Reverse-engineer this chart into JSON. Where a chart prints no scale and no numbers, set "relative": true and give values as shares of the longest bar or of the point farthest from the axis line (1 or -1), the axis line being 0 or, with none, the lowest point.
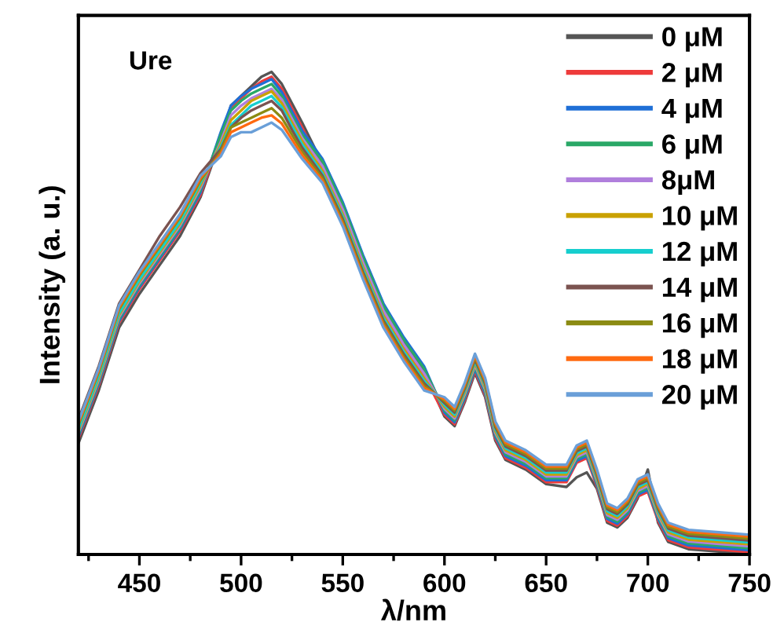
{
  "chart_data": {
    "type": "line",
    "relative": true,
    "xlabel": "λ/nm",
    "ylabel": "Intensity (a. u.)",
    "annotations": [
      "Ure"
    ],
    "x": [
      420,
      430,
      440,
      450,
      460,
      470,
      480,
      490,
      495,
      500,
      505,
      510,
      515,
      520,
      525,
      530,
      540,
      550,
      560,
      570,
      580,
      590,
      600,
      605,
      610,
      615,
      620,
      625,
      630,
      640,
      650,
      660,
      665,
      670,
      675,
      680,
      685,
      690,
      695,
      700,
      705,
      710,
      720,
      735,
      750
    ],
    "xlim": [
      420,
      750
    ],
    "xticks": [
      450,
      500,
      550,
      600,
      650,
      700,
      750
    ],
    "legend": "top right",
    "grid": false,
    "line_style": "solid",
    "series": [
      {
        "name": "0 μM",
        "color": "#555555",
        "values": [
          0.23,
          0.34,
          0.47,
          0.54,
          0.6,
          0.66,
          0.74,
          0.86,
          0.93,
          0.95,
          0.97,
          0.99,
          1.0,
          0.975,
          0.935,
          0.895,
          0.81,
          0.72,
          0.61,
          0.51,
          0.44,
          0.38,
          0.286,
          0.266,
          0.316,
          0.376,
          0.326,
          0.236,
          0.196,
          0.176,
          0.146,
          0.14,
          0.16,
          0.17,
          0.136,
          0.066,
          0.056,
          0.076,
          0.116,
          0.176,
          0.066,
          0.026,
          0.011,
          0.006,
          0.001
        ]
      },
      {
        "name": "2 μM",
        "color": "#ee3b3b",
        "values": [
          0.24,
          0.35,
          0.48,
          0.55,
          0.61,
          0.67,
          0.745,
          0.865,
          0.925,
          0.945,
          0.965,
          0.98,
          0.99,
          0.965,
          0.925,
          0.885,
          0.8,
          0.71,
          0.6,
          0.5,
          0.43,
          0.37,
          0.29,
          0.27,
          0.32,
          0.38,
          0.33,
          0.24,
          0.2,
          0.18,
          0.15,
          0.15,
          0.19,
          0.2,
          0.14,
          0.07,
          0.06,
          0.08,
          0.12,
          0.13,
          0.07,
          0.03,
          0.015,
          0.01,
          0.005
        ]
      },
      {
        "name": "4 μM",
        "color": "#1f6fd6",
        "values": [
          0.244,
          0.354,
          0.484,
          0.554,
          0.614,
          0.674,
          0.75,
          0.875,
          0.93,
          0.95,
          0.965,
          0.975,
          0.985,
          0.958,
          0.918,
          0.878,
          0.82,
          0.73,
          0.62,
          0.52,
          0.45,
          0.39,
          0.294,
          0.274,
          0.324,
          0.384,
          0.334,
          0.244,
          0.204,
          0.184,
          0.154,
          0.154,
          0.194,
          0.204,
          0.144,
          0.074,
          0.064,
          0.084,
          0.124,
          0.134,
          0.074,
          0.034,
          0.019,
          0.014,
          0.009
        ]
      },
      {
        "name": "6 μM",
        "color": "#2aa867",
        "values": [
          0.248,
          0.358,
          0.488,
          0.558,
          0.618,
          0.678,
          0.755,
          0.87,
          0.92,
          0.94,
          0.955,
          0.965,
          0.975,
          0.95,
          0.91,
          0.87,
          0.815,
          0.725,
          0.615,
          0.515,
          0.445,
          0.385,
          0.298,
          0.278,
          0.328,
          0.388,
          0.338,
          0.248,
          0.208,
          0.188,
          0.158,
          0.158,
          0.198,
          0.208,
          0.148,
          0.078,
          0.068,
          0.088,
          0.128,
          0.138,
          0.078,
          0.038,
          0.023,
          0.018,
          0.013
        ]
      },
      {
        "name": "8μM",
        "color": "#b07fdc",
        "values": [
          0.252,
          0.362,
          0.492,
          0.562,
          0.622,
          0.682,
          0.76,
          0.855,
          0.91,
          0.93,
          0.945,
          0.955,
          0.965,
          0.943,
          0.903,
          0.863,
          0.805,
          0.715,
          0.605,
          0.505,
          0.435,
          0.375,
          0.302,
          0.282,
          0.332,
          0.392,
          0.342,
          0.252,
          0.212,
          0.192,
          0.162,
          0.162,
          0.202,
          0.212,
          0.152,
          0.082,
          0.072,
          0.092,
          0.132,
          0.142,
          0.082,
          0.042,
          0.027,
          0.022,
          0.017
        ]
      },
      {
        "name": "10 μM",
        "color": "#c9a100",
        "values": [
          0.256,
          0.366,
          0.496,
          0.566,
          0.626,
          0.686,
          0.765,
          0.85,
          0.9,
          0.92,
          0.94,
          0.95,
          0.96,
          0.935,
          0.895,
          0.857,
          0.795,
          0.705,
          0.595,
          0.495,
          0.425,
          0.365,
          0.306,
          0.286,
          0.336,
          0.396,
          0.346,
          0.256,
          0.216,
          0.196,
          0.166,
          0.166,
          0.206,
          0.216,
          0.156,
          0.086,
          0.076,
          0.096,
          0.136,
          0.146,
          0.086,
          0.046,
          0.031,
          0.026,
          0.021
        ]
      },
      {
        "name": "12 μM",
        "color": "#16cece",
        "values": [
          0.26,
          0.37,
          0.5,
          0.57,
          0.63,
          0.69,
          0.77,
          0.845,
          0.89,
          0.91,
          0.93,
          0.94,
          0.95,
          0.927,
          0.888,
          0.85,
          0.79,
          0.7,
          0.59,
          0.49,
          0.42,
          0.36,
          0.31,
          0.29,
          0.34,
          0.4,
          0.35,
          0.26,
          0.22,
          0.2,
          0.17,
          0.17,
          0.21,
          0.22,
          0.16,
          0.09,
          0.08,
          0.1,
          0.14,
          0.15,
          0.09,
          0.05,
          0.035,
          0.03,
          0.025
        ]
      },
      {
        "name": "14 μM",
        "color": "#7b5350",
        "values": [
          0.28,
          0.39,
          0.52,
          0.59,
          0.66,
          0.72,
          0.79,
          0.84,
          0.885,
          0.905,
          0.92,
          0.93,
          0.94,
          0.92,
          0.88,
          0.843,
          0.785,
          0.695,
          0.585,
          0.485,
          0.415,
          0.355,
          0.314,
          0.294,
          0.344,
          0.404,
          0.354,
          0.264,
          0.224,
          0.204,
          0.174,
          0.174,
          0.214,
          0.224,
          0.164,
          0.094,
          0.084,
          0.104,
          0.144,
          0.154,
          0.094,
          0.054,
          0.039,
          0.034,
          0.029
        ]
      },
      {
        "name": "16 μM",
        "color": "#8b8b13",
        "values": [
          0.268,
          0.378,
          0.508,
          0.578,
          0.638,
          0.698,
          0.775,
          0.835,
          0.885,
          0.895,
          0.905,
          0.915,
          0.925,
          0.905,
          0.87,
          0.835,
          0.78,
          0.69,
          0.58,
          0.48,
          0.41,
          0.35,
          0.318,
          0.298,
          0.348,
          0.408,
          0.358,
          0.268,
          0.228,
          0.208,
          0.178,
          0.178,
          0.218,
          0.228,
          0.168,
          0.098,
          0.088,
          0.108,
          0.148,
          0.158,
          0.098,
          0.058,
          0.043,
          0.038,
          0.033
        ]
      },
      {
        "name": "18 μM",
        "color": "#ff6a10",
        "values": [
          0.272,
          0.382,
          0.512,
          0.582,
          0.642,
          0.702,
          0.78,
          0.83,
          0.875,
          0.885,
          0.895,
          0.905,
          0.91,
          0.893,
          0.86,
          0.828,
          0.775,
          0.685,
          0.575,
          0.475,
          0.405,
          0.345,
          0.322,
          0.302,
          0.352,
          0.412,
          0.362,
          0.272,
          0.232,
          0.212,
          0.182,
          0.182,
          0.222,
          0.232,
          0.172,
          0.102,
          0.092,
          0.112,
          0.152,
          0.162,
          0.102,
          0.062,
          0.047,
          0.042,
          0.037
        ]
      },
      {
        "name": "20 μM",
        "color": "#6a9fd8",
        "values": [
          0.276,
          0.386,
          0.516,
          0.586,
          0.646,
          0.706,
          0.785,
          0.825,
          0.865,
          0.875,
          0.875,
          0.885,
          0.895,
          0.88,
          0.85,
          0.82,
          0.77,
          0.68,
          0.57,
          0.47,
          0.4,
          0.34,
          0.326,
          0.306,
          0.356,
          0.416,
          0.366,
          0.276,
          0.236,
          0.216,
          0.186,
          0.186,
          0.226,
          0.236,
          0.176,
          0.106,
          0.096,
          0.116,
          0.156,
          0.166,
          0.106,
          0.066,
          0.051,
          0.046,
          0.041
        ]
      }
    ]
  }
}
